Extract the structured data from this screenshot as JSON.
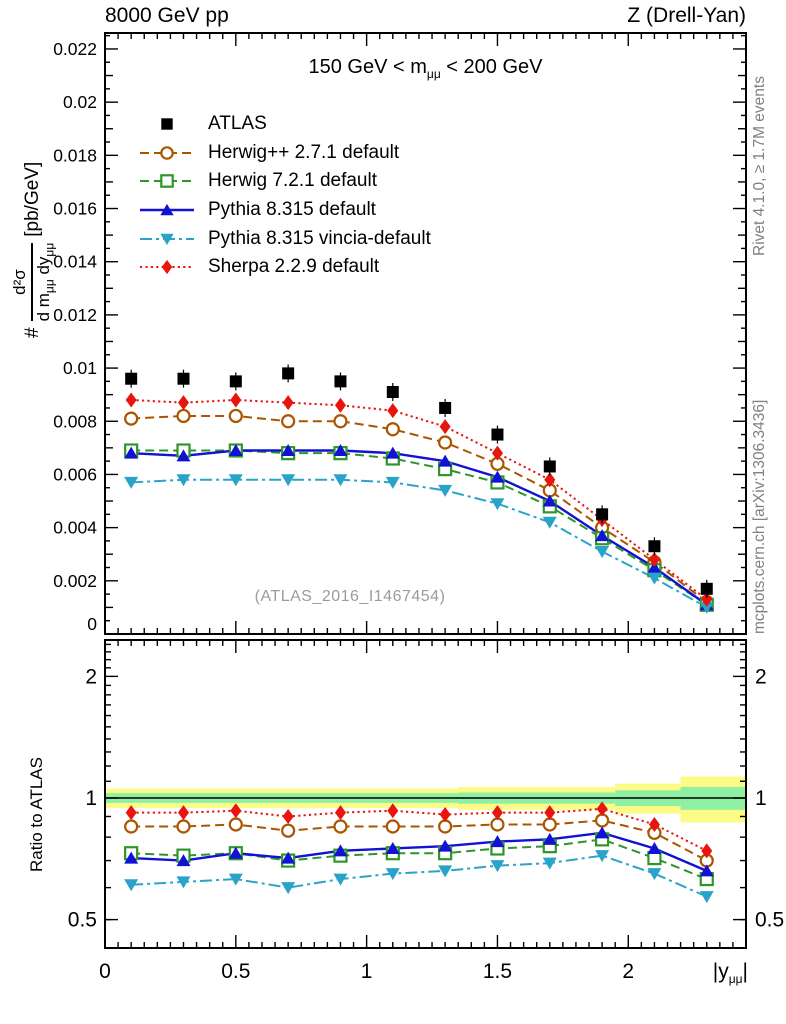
{
  "header": {
    "left": "8000 GeV pp",
    "right": "Z (Drell-Yan)"
  },
  "subtitle": {
    "pre": "150 GeV < m",
    "sub": "μμ",
    "post": " < 200 GeV"
  },
  "watermark": "(ATLAS_2016_I1467454)",
  "side_notes": {
    "top": "Rivet 4.1.0, ≥ 1.7M events",
    "bottom": "mcplots.cern.ch [arXiv:1306.3436]"
  },
  "axes": {
    "ylabel": {
      "prefix": "#",
      "numerator": "d²σ",
      "den_pre": "d m",
      "den_sub1": "μμ",
      "den_mid": " dy",
      "den_sub2": "μμ",
      "units": "[pb/GeV]"
    },
    "xlabel": {
      "pre": "|y",
      "sub": "μμ",
      "post": "|"
    },
    "ratio_label": "Ratio to ATLAS"
  },
  "chart_data": [
    {
      "type": "line",
      "panel": "main",
      "title": "150 GeV < m_mumu < 200 GeV",
      "xlabel": "|y_mumu|",
      "ylabel": "# d2sigma/dm_mumu dy_mumu [pb/GeV]",
      "xlim": [
        0,
        2.45
      ],
      "ylim": [
        0,
        0.0226
      ],
      "x": [
        0.1,
        0.3,
        0.5,
        0.7,
        0.9,
        1.1,
        1.3,
        1.5,
        1.7,
        1.9,
        2.1,
        2.3
      ],
      "xticks": {
        "values": [
          0,
          0.5,
          1,
          1.5,
          2
        ],
        "labels": [
          "0",
          "0.5",
          "1",
          "1.5",
          "2"
        ]
      },
      "yticks": {
        "values": [
          0,
          0.002,
          0.004,
          0.006,
          0.008,
          0.01,
          0.012,
          0.014,
          0.016,
          0.018,
          0.02,
          0.022
        ],
        "labels": [
          "0",
          "0.002",
          "0.004",
          "0.006",
          "0.008",
          "0.01",
          "0.012",
          "0.014",
          "0.016",
          "0.018",
          "0.02",
          "0.022"
        ]
      },
      "series": [
        {
          "name": "ATLAS",
          "color": "#000000",
          "marker": "square-filled",
          "line": "none",
          "values": [
            0.0096,
            0.0096,
            0.0095,
            0.0098,
            0.0095,
            0.0091,
            0.0085,
            0.0075,
            0.0063,
            0.0045,
            0.0033,
            0.0017
          ]
        },
        {
          "name": "Herwig++ 2.7.1 default",
          "color": "#aa5500",
          "marker": "circle-open",
          "line": "dash",
          "values": [
            0.0081,
            0.0082,
            0.0082,
            0.008,
            0.008,
            0.0077,
            0.0072,
            0.0064,
            0.0054,
            0.004,
            0.0027,
            0.0012
          ]
        },
        {
          "name": "Herwig 7.2.1 default",
          "color": "#2e9628",
          "marker": "square-open",
          "line": "dash",
          "values": [
            0.0069,
            0.0069,
            0.0069,
            0.0068,
            0.0068,
            0.0066,
            0.0062,
            0.0057,
            0.0048,
            0.0036,
            0.0024,
            0.0011
          ]
        },
        {
          "name": "Pythia 8.315 default",
          "color": "#1212d4",
          "marker": "triangle-up-filled",
          "line": "solid",
          "values": [
            0.0068,
            0.0067,
            0.0069,
            0.0069,
            0.0069,
            0.0068,
            0.0065,
            0.0059,
            0.005,
            0.0037,
            0.0025,
            0.0011
          ]
        },
        {
          "name": "Pythia 8.315 vincia-default",
          "color": "#29a4c8",
          "marker": "triangle-down-filled",
          "line": "dashdot",
          "values": [
            0.0057,
            0.0058,
            0.0058,
            0.0058,
            0.0058,
            0.0057,
            0.0054,
            0.0049,
            0.0042,
            0.0031,
            0.0021,
            0.001
          ]
        },
        {
          "name": "Sherpa 2.2.9 default",
          "color": "#e8150f",
          "marker": "diamond-filled",
          "line": "dot",
          "values": [
            0.0088,
            0.0087,
            0.0088,
            0.0087,
            0.0086,
            0.0084,
            0.0078,
            0.0068,
            0.0058,
            0.0043,
            0.0028,
            0.0013
          ]
        }
      ]
    },
    {
      "type": "ratio-line",
      "panel": "ratio",
      "ylabel": "Ratio to ATLAS",
      "yscale": "log",
      "xlim": [
        0,
        2.45
      ],
      "ylim": [
        0.425,
        2.46
      ],
      "reference_line": 1,
      "yticks": {
        "values": [
          0.5,
          1,
          2
        ],
        "labels": [
          "0.5",
          "1",
          "2"
        ]
      },
      "band_colors": {
        "outer": "#fbfb86",
        "inner": "#8ff0a4"
      },
      "bands": [
        {
          "x0": 0.0,
          "x1": 1.35,
          "outer": 0.055,
          "inner": 0.028
        },
        {
          "x0": 1.35,
          "x1": 1.95,
          "outer": 0.065,
          "inner": 0.032
        },
        {
          "x0": 1.95,
          "x1": 2.2,
          "outer": 0.085,
          "inner": 0.045
        },
        {
          "x0": 2.2,
          "x1": 2.45,
          "outer": 0.13,
          "inner": 0.065
        }
      ],
      "x": [
        0.1,
        0.3,
        0.5,
        0.7,
        0.9,
        1.1,
        1.3,
        1.5,
        1.7,
        1.9,
        2.1,
        2.3
      ],
      "series": [
        {
          "name": "Herwig++ 2.7.1 default",
          "values": [
            0.85,
            0.85,
            0.86,
            0.83,
            0.85,
            0.85,
            0.85,
            0.86,
            0.86,
            0.88,
            0.82,
            0.7
          ]
        },
        {
          "name": "Herwig 7.2.1 default",
          "values": [
            0.73,
            0.72,
            0.73,
            0.7,
            0.72,
            0.73,
            0.73,
            0.75,
            0.76,
            0.79,
            0.71,
            0.63
          ]
        },
        {
          "name": "Pythia 8.315 default",
          "values": [
            0.71,
            0.7,
            0.73,
            0.71,
            0.74,
            0.75,
            0.76,
            0.78,
            0.79,
            0.82,
            0.75,
            0.66
          ]
        },
        {
          "name": "Pythia 8.315 vincia-default",
          "values": [
            0.61,
            0.62,
            0.63,
            0.6,
            0.63,
            0.65,
            0.66,
            0.68,
            0.69,
            0.72,
            0.65,
            0.57
          ]
        },
        {
          "name": "Sherpa 2.2.9 default",
          "values": [
            0.92,
            0.92,
            0.93,
            0.9,
            0.92,
            0.93,
            0.91,
            0.92,
            0.92,
            0.94,
            0.86,
            0.74
          ]
        }
      ]
    }
  ]
}
